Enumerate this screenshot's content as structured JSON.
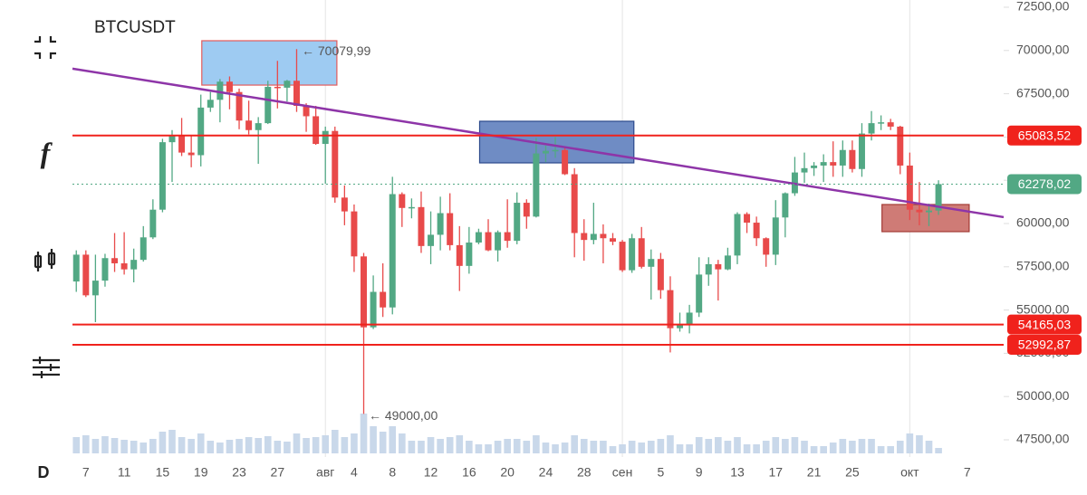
{
  "chart_data": {
    "type": "candlestick",
    "title": "BTCUSDT",
    "interval": "D",
    "up_color": "#52a884",
    "down_color": "#e84a4a",
    "volume_color": "#c9d8ea",
    "open": [
      56650,
      58200,
      55850,
      56700,
      58000,
      57700,
      57350,
      57900,
      59200,
      60800,
      64700,
      65050,
      64100,
      63950,
      66700,
      67150,
      68200,
      67600,
      65950,
      65400,
      65800,
      67900,
      67850,
      68250,
      66800,
      66200,
      64600,
      65350,
      61500,
      60700,
      58100,
      54000,
      56050,
      55150,
      61700,
      60900,
      60950,
      58700,
      59350,
      60600,
      58750,
      57550,
      58900,
      59500,
      58450,
      59500,
      59000,
      61200,
      60400,
      64050,
      64200,
      64250,
      62850,
      59450,
      59050,
      59400,
      59150,
      58950,
      57300,
      59150,
      57500,
      57950,
      56150,
      53950,
      54150,
      54850,
      57050,
      57650,
      57350,
      58150,
      60550,
      60050,
      59150,
      58200,
      60350,
      61750,
      62950,
      63200,
      63350,
      63550,
      63350,
      64250,
      63150,
      65200,
      65800,
      65850,
      65600,
      63350,
      60800,
      60650,
      60750
    ],
    "high": [
      58450,
      58450,
      58200,
      58250,
      59450,
      59500,
      58550,
      59850,
      61400,
      64900,
      65400,
      66100,
      65100,
      67450,
      67600,
      68350,
      68500,
      67800,
      67100,
      66150,
      68250,
      69400,
      68300,
      70079.99,
      66950,
      66800,
      65600,
      65600,
      62200,
      61100,
      58300,
      57000,
      57700,
      62700,
      61800,
      61450,
      61850,
      60700,
      61550,
      61750,
      59850,
      59800,
      59700,
      60250,
      59600,
      61400,
      61800,
      61400,
      64950,
      64500,
      65000,
      64450,
      63200,
      60250,
      61200,
      59950,
      59450,
      59050,
      59400,
      59800,
      58500,
      58300,
      56950,
      54850,
      55300,
      58050,
      58050,
      57900,
      58600,
      60650,
      60650,
      60400,
      59200,
      61350,
      61800,
      63850,
      64100,
      63550,
      64000,
      64750,
      64800,
      64800,
      65800,
      66500,
      66250,
      66050,
      65650,
      64100,
      62400,
      61150,
      62500
    ],
    "low": [
      56050,
      55750,
      54300,
      56350,
      57200,
      57050,
      56600,
      57800,
      59100,
      60650,
      62400,
      63900,
      63250,
      63300,
      66450,
      65850,
      66600,
      65450,
      65150,
      63450,
      65750,
      66650,
      67050,
      66450,
      65300,
      64550,
      62300,
      61200,
      59900,
      57200,
      49000,
      53900,
      54600,
      54750,
      59800,
      60300,
      58300,
      57650,
      58450,
      58450,
      56100,
      57100,
      58800,
      58400,
      57800,
      58600,
      58800,
      59700,
      60350,
      63550,
      63800,
      62800,
      58050,
      57850,
      58800,
      57700,
      58750,
      57200,
      57150,
      57400,
      55600,
      55650,
      52550,
      53750,
      53650,
      54600,
      56400,
      55550,
      57300,
      57650,
      59450,
      58700,
      57500,
      57600,
      59200,
      61600,
      62350,
      62750,
      62400,
      62700,
      62700,
      62950,
      62700,
      64800,
      65400,
      65400,
      62850,
      60200,
      59900,
      59850,
      60500
    ],
    "close": [
      58200,
      55850,
      56700,
      58000,
      57700,
      57350,
      57900,
      59200,
      60800,
      64700,
      65050,
      64100,
      63950,
      66700,
      67150,
      68200,
      67600,
      65950,
      65400,
      65800,
      67900,
      67850,
      68250,
      66800,
      66200,
      64600,
      65350,
      61500,
      60700,
      58100,
      54000,
      56050,
      55150,
      61700,
      60900,
      60950,
      58700,
      59350,
      60600,
      58750,
      57550,
      58900,
      59500,
      58450,
      59500,
      59000,
      61200,
      60400,
      64050,
      64200,
      64250,
      62850,
      59450,
      59050,
      59400,
      59150,
      58950,
      57300,
      59150,
      57500,
      57950,
      56150,
      53950,
      54150,
      54850,
      57050,
      57650,
      57350,
      58150,
      60550,
      60050,
      59150,
      58200,
      60350,
      61750,
      62950,
      63200,
      63350,
      63550,
      63350,
      64250,
      63150,
      65200,
      65800,
      65850,
      65600,
      63350,
      60800,
      60650,
      60750,
      62278.02
    ],
    "volume": [
      18,
      20,
      16,
      19,
      17,
      15,
      14,
      12,
      16,
      24,
      26,
      18,
      16,
      22,
      14,
      12,
      15,
      16,
      18,
      17,
      19,
      14,
      13,
      22,
      17,
      18,
      20,
      26,
      18,
      22,
      44,
      30,
      24,
      30,
      22,
      14,
      14,
      18,
      16,
      18,
      20,
      14,
      10,
      10,
      14,
      16,
      16,
      14,
      20,
      12,
      10,
      12,
      20,
      16,
      14,
      14,
      8,
      10,
      14,
      12,
      14,
      16,
      20,
      10,
      10,
      18,
      16,
      18,
      14,
      18,
      10,
      10,
      14,
      18,
      16,
      18,
      14,
      8,
      8,
      12,
      16,
      14,
      16,
      16,
      8,
      8,
      14,
      22,
      20,
      14,
      6
    ],
    "xlim": [
      -0.4,
      96.8
    ],
    "xticks": [
      {
        "value": 1,
        "label": "7"
      },
      {
        "value": 5,
        "label": "11"
      },
      {
        "value": 9,
        "label": "15"
      },
      {
        "value": 13,
        "label": "19"
      },
      {
        "value": 17,
        "label": "23"
      },
      {
        "value": 21,
        "label": "27"
      },
      {
        "value": 26,
        "label": "авг"
      },
      {
        "value": 29,
        "label": "4"
      },
      {
        "value": 33,
        "label": "8"
      },
      {
        "value": 37,
        "label": "12"
      },
      {
        "value": 41,
        "label": "16"
      },
      {
        "value": 45,
        "label": "20"
      },
      {
        "value": 49,
        "label": "24"
      },
      {
        "value": 53,
        "label": "28"
      },
      {
        "value": 57,
        "label": "сен"
      },
      {
        "value": 61,
        "label": "5"
      },
      {
        "value": 65,
        "label": "9"
      },
      {
        "value": 69,
        "label": "13"
      },
      {
        "value": 73,
        "label": "17"
      },
      {
        "value": 77,
        "label": "21"
      },
      {
        "value": 81,
        "label": "25"
      },
      {
        "value": 87,
        "label": "окт"
      },
      {
        "value": 93,
        "label": "7"
      }
    ],
    "ylim": [
      47500,
      72500
    ],
    "yticks": [
      {
        "value": 47500,
        "label": "47500,00"
      },
      {
        "value": 50000,
        "label": "50000,00"
      },
      {
        "value": 52500,
        "label": "52500,00"
      },
      {
        "value": 55000,
        "label": "55000,00"
      },
      {
        "value": 57500,
        "label": "57500,00"
      },
      {
        "value": 60000,
        "label": "60000,00"
      },
      {
        "value": 62500,
        "label": "62500,00"
      },
      {
        "value": 65000,
        "label": "65000,00"
      },
      {
        "value": 67500,
        "label": "67500,00"
      },
      {
        "value": 70000,
        "label": "70000,00"
      },
      {
        "value": 72500,
        "label": "72500,00"
      }
    ],
    "levels": [
      {
        "value": 65083.52,
        "label": "65083,52"
      },
      {
        "value": 54165.03,
        "label": "54165,03"
      },
      {
        "value": 52992.87,
        "label": "52992,87"
      }
    ],
    "level_color": "#f0221c",
    "last_price": {
      "value": 62278.02,
      "label": "62278,02"
    },
    "trendline": {
      "x": [
        -0.4,
        96.8
      ],
      "y": [
        68950,
        60370
      ],
      "color": "#8e35a8"
    },
    "boxes": [
      {
        "x": [
          13.1,
          27.2
        ],
        "y": [
          68000,
          70565
        ],
        "fill": "#9ecbf2",
        "stroke": "#e35b5b"
      },
      {
        "x": [
          42.1,
          58.2
        ],
        "y": [
          63504,
          65910
        ],
        "fill": "#6f8cc4",
        "stroke": "#2c4a8c"
      },
      {
        "x": [
          84.1,
          93.2
        ],
        "y": [
          59530,
          61098
        ],
        "fill": "#cf7b76",
        "stroke": "#a33a35"
      }
    ],
    "annotations": [
      "← 70079,99",
      "← 49000,00"
    ]
  }
}
